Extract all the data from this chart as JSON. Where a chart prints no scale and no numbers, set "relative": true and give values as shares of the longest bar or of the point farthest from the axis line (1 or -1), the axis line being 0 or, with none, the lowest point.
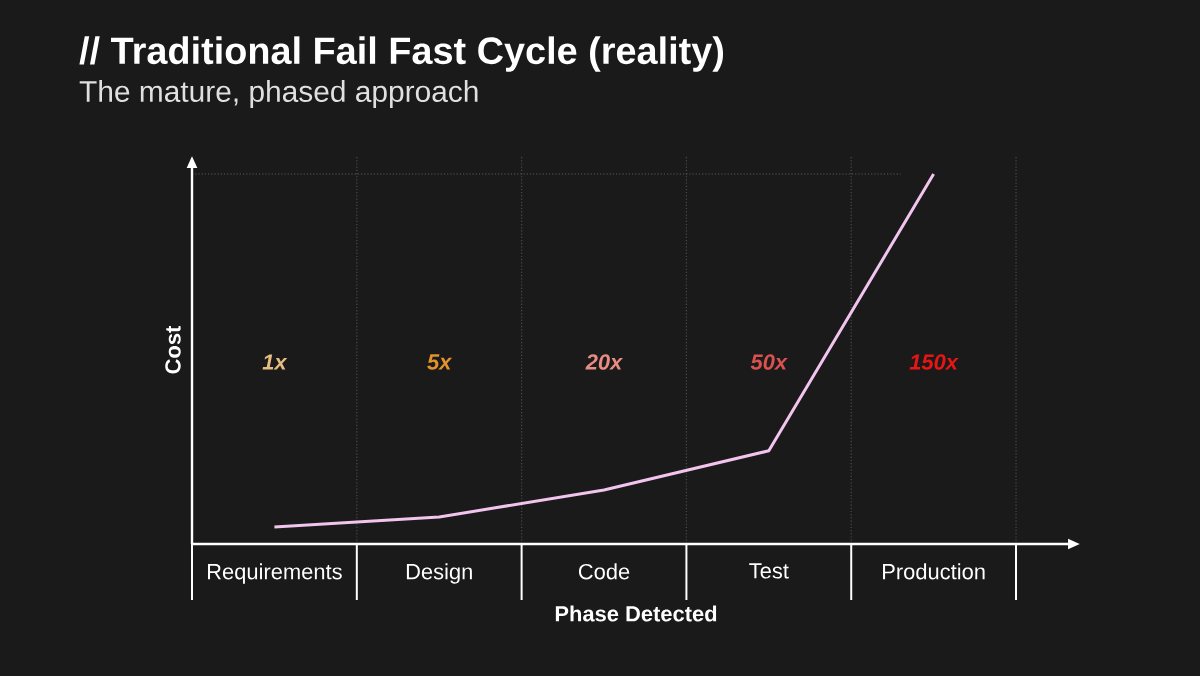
{
  "chart_data": {
    "type": "line",
    "title": "// Traditional Fail Fast Cycle (reality)",
    "subtitle": "The mature, phased approach",
    "xlabel": "Phase Detected",
    "ylabel": "Cost",
    "categories": [
      "Requirements",
      "Design",
      "Code",
      "Test",
      "Production"
    ],
    "relative": true,
    "series": [
      {
        "color": "#f2c4ee",
        "values": [
          0.046,
          0.073,
          0.146,
          0.252,
          1
        ]
      }
    ],
    "annotations": [
      "1x",
      "5x",
      "20x",
      "50x",
      "150x"
    ],
    "ref_lines": [
      {
        "axis": "y",
        "value": 1,
        "line_style": "dotted",
        "color": "#5a5a5a"
      }
    ],
    "grid": "x",
    "line_style": "solid"
  }
}
